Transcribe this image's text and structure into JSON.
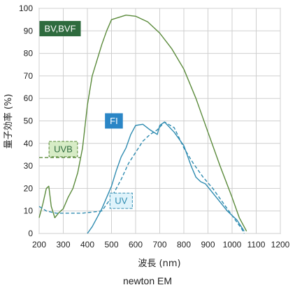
{
  "caption": "newton EM",
  "chart_data": {
    "type": "line",
    "xlabel": "波長 (nm)",
    "ylabel": "量子効率 (%)",
    "xlim": [
      200,
      1200
    ],
    "ylim": [
      0,
      100
    ],
    "xticks": [
      200,
      300,
      400,
      500,
      600,
      700,
      800,
      900,
      1000,
      1100,
      1200
    ],
    "yticks": [
      0,
      10,
      20,
      30,
      40,
      50,
      60,
      70,
      80,
      90,
      100
    ],
    "grid": true,
    "series": [
      {
        "name": "BV,BVF",
        "color": "#5a8a3a",
        "dash": false,
        "label_color": "#2e6b3e",
        "label_text_color": "#ffffff",
        "label_pos": [
          287,
          91
        ],
        "points": [
          [
            200,
            7
          ],
          [
            215,
            13
          ],
          [
            230,
            20
          ],
          [
            240,
            21
          ],
          [
            250,
            12
          ],
          [
            265,
            7
          ],
          [
            280,
            9
          ],
          [
            300,
            11
          ],
          [
            320,
            16
          ],
          [
            340,
            20
          ],
          [
            360,
            27
          ],
          [
            380,
            38
          ],
          [
            400,
            57
          ],
          [
            420,
            70
          ],
          [
            440,
            77
          ],
          [
            460,
            84
          ],
          [
            480,
            90
          ],
          [
            500,
            95
          ],
          [
            530,
            96
          ],
          [
            560,
            97
          ],
          [
            600,
            96.5
          ],
          [
            650,
            94
          ],
          [
            700,
            89
          ],
          [
            750,
            82
          ],
          [
            800,
            73
          ],
          [
            850,
            60
          ],
          [
            900,
            45
          ],
          [
            950,
            30
          ],
          [
            1000,
            16
          ],
          [
            1030,
            7
          ],
          [
            1060,
            1
          ]
        ]
      },
      {
        "name": "UVB",
        "color": "#5a8a3a",
        "dash": true,
        "label_color": "#d7ecc6",
        "label_text_color": "#2e6b3e",
        "label_pos": [
          300,
          37.5
        ],
        "points": [
          [
            200,
            33.7
          ],
          [
            250,
            33.7
          ],
          [
            300,
            33.7
          ],
          [
            350,
            33.7
          ],
          [
            370,
            33.7
          ]
        ]
      },
      {
        "name": "FI",
        "color": "#2e8bb0",
        "dash": false,
        "label_color": "#2b86c6",
        "label_text_color": "#ffffff",
        "label_pos": [
          510,
          50
        ],
        "points": [
          [
            400,
            0
          ],
          [
            420,
            3
          ],
          [
            440,
            7
          ],
          [
            460,
            11
          ],
          [
            480,
            16
          ],
          [
            500,
            21
          ],
          [
            520,
            28
          ],
          [
            540,
            34
          ],
          [
            560,
            38
          ],
          [
            580,
            44
          ],
          [
            600,
            48
          ],
          [
            630,
            48.5
          ],
          [
            660,
            46
          ],
          [
            690,
            44
          ],
          [
            700,
            48
          ],
          [
            720,
            49.5
          ],
          [
            760,
            45
          ],
          [
            800,
            39
          ],
          [
            830,
            30
          ],
          [
            850,
            25
          ],
          [
            870,
            23
          ],
          [
            890,
            22
          ],
          [
            920,
            18
          ],
          [
            950,
            14
          ],
          [
            980,
            10
          ],
          [
            1020,
            6
          ],
          [
            1050,
            1
          ]
        ]
      },
      {
        "name": "UV",
        "color": "#2e8bb0",
        "dash": true,
        "label_color": "#dff3fb",
        "label_text_color": "#2e8bb0",
        "label_pos": [
          540,
          14.5
        ],
        "points": [
          [
            200,
            12
          ],
          [
            230,
            10
          ],
          [
            270,
            9
          ],
          [
            300,
            9
          ],
          [
            340,
            9
          ],
          [
            380,
            9
          ],
          [
            420,
            9.5
          ],
          [
            460,
            10
          ],
          [
            500,
            16
          ],
          [
            540,
            24
          ],
          [
            570,
            31
          ],
          [
            600,
            36
          ],
          [
            630,
            41
          ],
          [
            660,
            44
          ],
          [
            690,
            46
          ],
          [
            720,
            49.5
          ],
          [
            760,
            47
          ],
          [
            800,
            38
          ],
          [
            840,
            31
          ],
          [
            880,
            25
          ],
          [
            920,
            20
          ],
          [
            960,
            14
          ],
          [
            1000,
            8
          ],
          [
            1040,
            2
          ],
          [
            1050,
            0
          ]
        ]
      }
    ]
  }
}
